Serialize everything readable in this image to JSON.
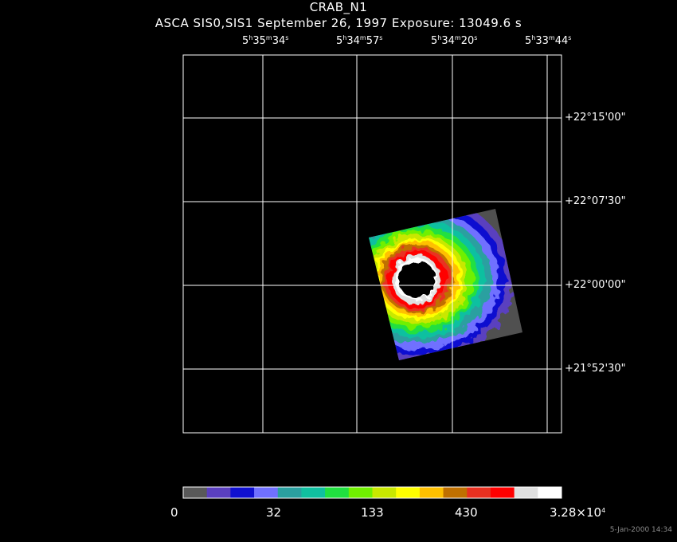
{
  "header": {
    "title": "CRAB_N1",
    "subtitle": "ASCA SIS0,SIS1 September 26, 1997 Exposure: 13049.6 s"
  },
  "ra_labels": [
    {
      "h": "5",
      "m": "35",
      "s": "34"
    },
    {
      "h": "5",
      "m": "34",
      "s": "57"
    },
    {
      "h": "5",
      "m": "34",
      "s": "20"
    },
    {
      "h": "5",
      "m": "33",
      "s": "44"
    }
  ],
  "dec_labels": [
    "+22°15'00\"",
    "+22°07'30\"",
    "+22°00'00\"",
    "+21°52'30\""
  ],
  "colorbar": {
    "labels": [
      "0",
      "32",
      "133",
      "430",
      "3.28×10"
    ],
    "max_exponent": "4",
    "colors": [
      "#595959",
      "#5a3fbf",
      "#1010d0",
      "#7070ff",
      "#2aa0a0",
      "#10c0a0",
      "#20e040",
      "#70f000",
      "#c8e800",
      "#ffff00",
      "#ffc000",
      "#c07000",
      "#e83020",
      "#ff0000",
      "#e0e0e0",
      "#ffffff"
    ]
  },
  "footer": {
    "timestamp": "5-Jan-2000 14:34"
  }
}
